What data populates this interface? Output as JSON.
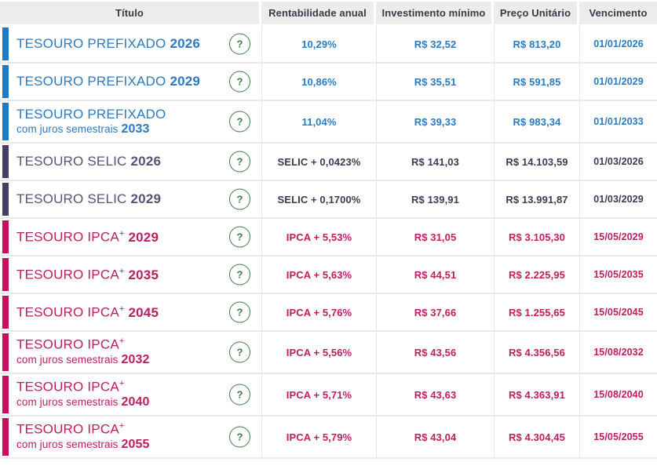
{
  "table": {
    "headers": [
      "Título",
      "Rentabilidade anual",
      "Investimento mínimo",
      "Preço Unitário",
      "Vencimento"
    ],
    "help_label": "?",
    "palette": {
      "prefixado": {
        "bar": "#1e79c2",
        "title": "#2b7abf",
        "value": "#2b7abf"
      },
      "selic": {
        "bar": "#453f68",
        "title": "#575278",
        "value": "#3d3a58"
      },
      "ipca": {
        "bar": "#c60f5f",
        "title": "#bb1e61",
        "value": "#c11d5f"
      }
    },
    "rows": [
      {
        "family": "prefixado",
        "line1": "TESOURO PREFIXADO",
        "sup": "",
        "year1": "2026",
        "line2": "",
        "year2": "",
        "rentabilidade": "10,29%",
        "investimento": "R$ 32,52",
        "preco": "R$ 813,20",
        "vencimento": "01/01/2026"
      },
      {
        "family": "prefixado",
        "line1": "TESOURO PREFIXADO",
        "sup": "",
        "year1": "2029",
        "line2": "",
        "year2": "",
        "rentabilidade": "10,86%",
        "investimento": "R$ 35,51",
        "preco": "R$ 591,85",
        "vencimento": "01/01/2029"
      },
      {
        "family": "prefixado",
        "line1": "TESOURO PREFIXADO",
        "sup": "",
        "year1": "",
        "line2": "com juros semestrais",
        "year2": "2033",
        "rentabilidade": "11,04%",
        "investimento": "R$ 39,33",
        "preco": "R$ 983,34",
        "vencimento": "01/01/2033"
      },
      {
        "family": "selic",
        "line1": "TESOURO SELIC",
        "sup": "",
        "year1": "2026",
        "line2": "",
        "year2": "",
        "rentabilidade": "SELIC + 0,0423%",
        "investimento": "R$ 141,03",
        "preco": "R$ 14.103,59",
        "vencimento": "01/03/2026"
      },
      {
        "family": "selic",
        "line1": "TESOURO SELIC",
        "sup": "",
        "year1": "2029",
        "line2": "",
        "year2": "",
        "rentabilidade": "SELIC + 0,1700%",
        "investimento": "R$ 139,91",
        "preco": "R$ 13.991,87",
        "vencimento": "01/03/2029"
      },
      {
        "family": "ipca",
        "line1": "TESOURO IPCA",
        "sup": "+",
        "year1": "2029",
        "line2": "",
        "year2": "",
        "rentabilidade": "IPCA + 5,53%",
        "investimento": "R$ 31,05",
        "preco": "R$ 3.105,30",
        "vencimento": "15/05/2029"
      },
      {
        "family": "ipca",
        "line1": "TESOURO IPCA",
        "sup": "+",
        "year1": "2035",
        "line2": "",
        "year2": "",
        "rentabilidade": "IPCA + 5,63%",
        "investimento": "R$ 44,51",
        "preco": "R$ 2.225,95",
        "vencimento": "15/05/2035"
      },
      {
        "family": "ipca",
        "line1": "TESOURO IPCA",
        "sup": "+",
        "year1": "2045",
        "line2": "",
        "year2": "",
        "rentabilidade": "IPCA + 5,76%",
        "investimento": "R$ 37,66",
        "preco": "R$ 1.255,65",
        "vencimento": "15/05/2045"
      },
      {
        "family": "ipca",
        "line1": "TESOURO IPCA",
        "sup": "+",
        "year1": "",
        "line2": "com juros semestrais",
        "year2": "2032",
        "rentabilidade": "IPCA + 5,56%",
        "investimento": "R$ 43,56",
        "preco": "R$ 4.356,56",
        "vencimento": "15/08/2032"
      },
      {
        "family": "ipca",
        "line1": "TESOURO IPCA",
        "sup": "+",
        "year1": "",
        "line2": "com juros semestrais",
        "year2": "2040",
        "rentabilidade": "IPCA + 5,71%",
        "investimento": "R$ 43,63",
        "preco": "R$ 4.363,91",
        "vencimento": "15/08/2040"
      },
      {
        "family": "ipca",
        "line1": "TESOURO IPCA",
        "sup": "+",
        "year1": "",
        "line2": "com juros semestrais",
        "year2": "2055",
        "rentabilidade": "IPCA + 5,79%",
        "investimento": "R$ 43,04",
        "preco": "R$ 4.304,45",
        "vencimento": "15/05/2055"
      }
    ]
  }
}
